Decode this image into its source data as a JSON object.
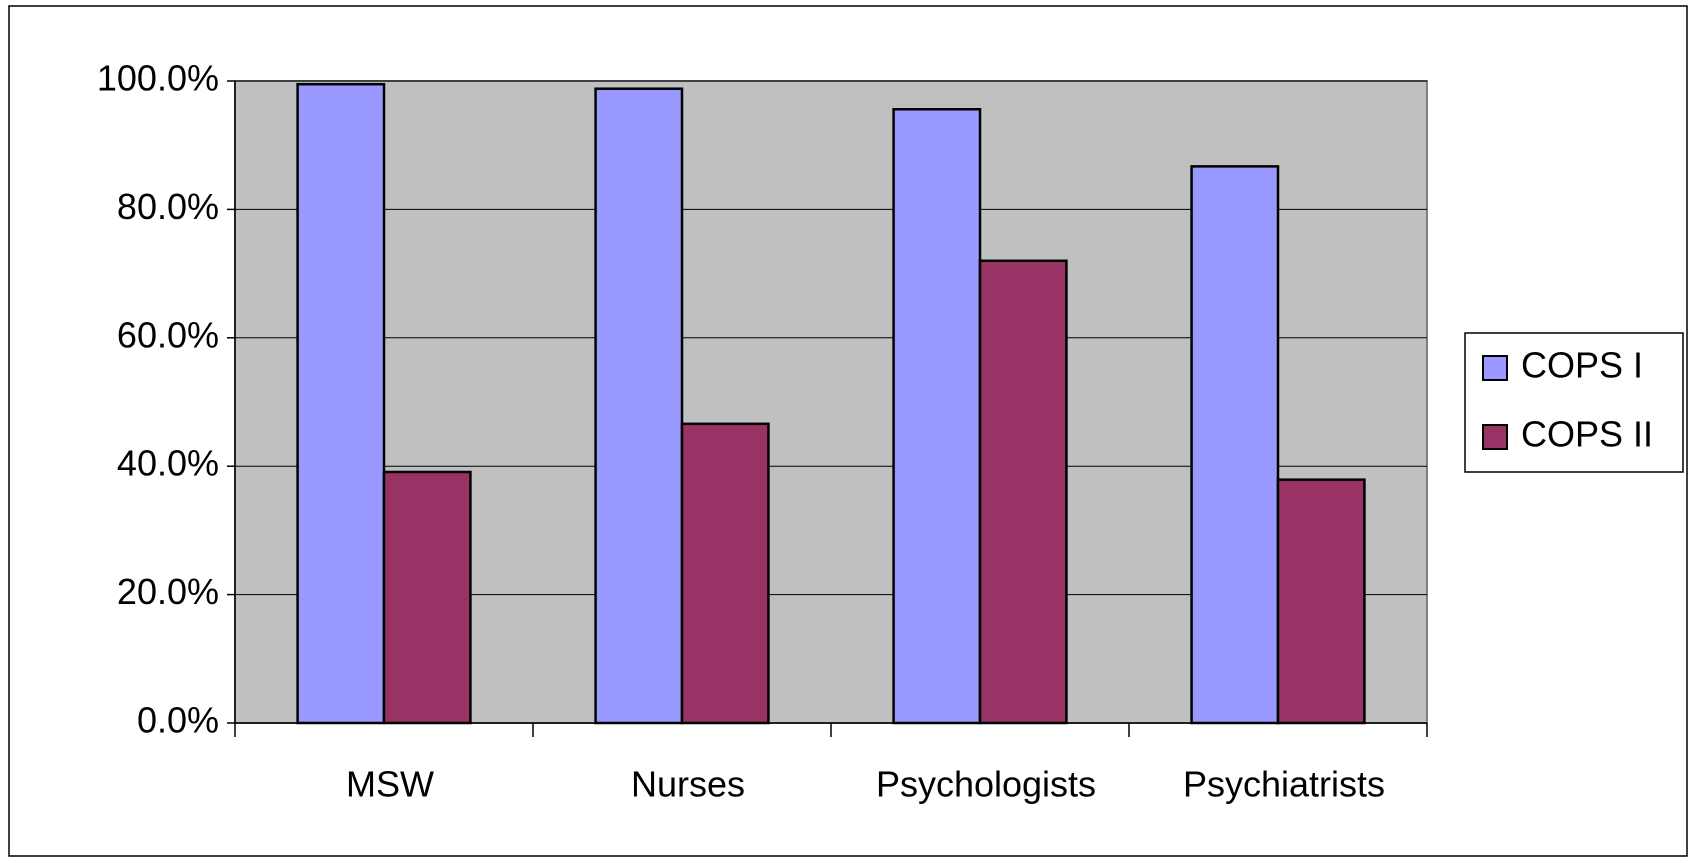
{
  "chart_data": {
    "type": "bar",
    "categories": [
      "MSW",
      "Nurses",
      "Psychologists",
      "Psychiatrists"
    ],
    "series": [
      {
        "name": "COPS I",
        "color": "#9999ff",
        "values": [
          99.5,
          98.8,
          95.6,
          86.7
        ]
      },
      {
        "name": "COPS II",
        "color": "#993366",
        "values": [
          39.1,
          46.6,
          72.0,
          37.9
        ]
      }
    ],
    "ylim": [
      0,
      100
    ],
    "yticks": [
      {
        "value": 0,
        "label": "0.0%"
      },
      {
        "value": 20,
        "label": "20.0%"
      },
      {
        "value": 40,
        "label": "40.0%"
      },
      {
        "value": 60,
        "label": "60.0%"
      },
      {
        "value": 80,
        "label": "80.0%"
      },
      {
        "value": 100,
        "label": "100.0%"
      }
    ],
    "grid": true,
    "legend": "right",
    "plot_background": "#c0c0c0"
  }
}
